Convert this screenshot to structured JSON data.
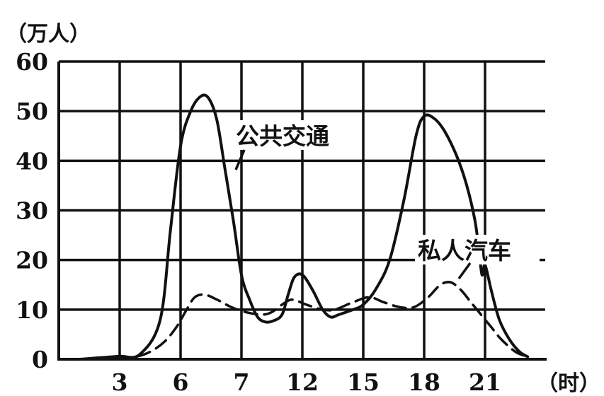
{
  "chart_data": {
    "type": "line",
    "title": "",
    "y_unit": "（万人）",
    "x_unit": "（时）",
    "x_ticks": [
      "3",
      "6",
      "7",
      "12",
      "15",
      "18",
      "21"
    ],
    "y_ticks": [
      "0",
      "10",
      "20",
      "30",
      "40",
      "50",
      "60"
    ],
    "ylim": [
      0,
      60
    ],
    "grid": true,
    "series": [
      {
        "name": "公共交通",
        "style": "solid",
        "color": "#111111",
        "points": [
          [
            0,
            0
          ],
          [
            1,
            0
          ],
          [
            2,
            0.3
          ],
          [
            3,
            0.6
          ],
          [
            4,
            1.0
          ],
          [
            5,
            8
          ],
          [
            5.5,
            26
          ],
          [
            6,
            43
          ],
          [
            6.5,
            50
          ],
          [
            7,
            53
          ],
          [
            7.4,
            52.5
          ],
          [
            7.8,
            48
          ],
          [
            8.2,
            38
          ],
          [
            8.6,
            28
          ],
          [
            9,
            17
          ],
          [
            9.4,
            12
          ],
          [
            9.8,
            8.5
          ],
          [
            10.2,
            7.5
          ],
          [
            10.6,
            7.8
          ],
          [
            11,
            9
          ],
          [
            11.3,
            13
          ],
          [
            11.6,
            16.5
          ],
          [
            12,
            17
          ],
          [
            12.5,
            14
          ],
          [
            13,
            10
          ],
          [
            13.4,
            8.5
          ],
          [
            13.8,
            9
          ],
          [
            14.5,
            10
          ],
          [
            15,
            11
          ],
          [
            15.6,
            14
          ],
          [
            16.3,
            20
          ],
          [
            17,
            32
          ],
          [
            17.6,
            45
          ],
          [
            18,
            49
          ],
          [
            18.5,
            48.5
          ],
          [
            19,
            46
          ],
          [
            19.6,
            41
          ],
          [
            20.1,
            35
          ],
          [
            20.5,
            28
          ],
          [
            20.7,
            22
          ],
          [
            20.85,
            17
          ],
          [
            21,
            19
          ],
          [
            21.3,
            14
          ],
          [
            21.7,
            8
          ],
          [
            22.2,
            4
          ],
          [
            22.7,
            1.5
          ],
          [
            23.1,
            0.5
          ]
        ]
      },
      {
        "name": "私人汽车",
        "style": "dashed",
        "color": "#111111",
        "points": [
          [
            0,
            0
          ],
          [
            1,
            0
          ],
          [
            2,
            0
          ],
          [
            3,
            0.2
          ],
          [
            3.8,
            0.5
          ],
          [
            4.5,
            1.5
          ],
          [
            5.2,
            3.5
          ],
          [
            5.8,
            6.5
          ],
          [
            6.3,
            10
          ],
          [
            6.7,
            12.5
          ],
          [
            7.2,
            13
          ],
          [
            7.8,
            12
          ],
          [
            8.5,
            10.5
          ],
          [
            9.2,
            9.5
          ],
          [
            10,
            9
          ],
          [
            10.5,
            9.5
          ],
          [
            11,
            11
          ],
          [
            11.5,
            12
          ],
          [
            12.2,
            11
          ],
          [
            13,
            10
          ],
          [
            13.6,
            10
          ],
          [
            14.5,
            11.5
          ],
          [
            15.3,
            12.5
          ],
          [
            16,
            11.5
          ],
          [
            16.8,
            10.5
          ],
          [
            17.5,
            10.5
          ],
          [
            18.2,
            12.5
          ],
          [
            18.8,
            15
          ],
          [
            19.3,
            15.5
          ],
          [
            19.8,
            14
          ],
          [
            20.3,
            11.5
          ],
          [
            20.8,
            9
          ],
          [
            21.3,
            6.5
          ],
          [
            21.8,
            4
          ],
          [
            22.5,
            1.5
          ],
          [
            23.1,
            0.5
          ]
        ]
      }
    ],
    "annotations": [
      {
        "text": "公共交通",
        "series": 0
      },
      {
        "text": "私人汽车",
        "series": 1
      }
    ]
  }
}
